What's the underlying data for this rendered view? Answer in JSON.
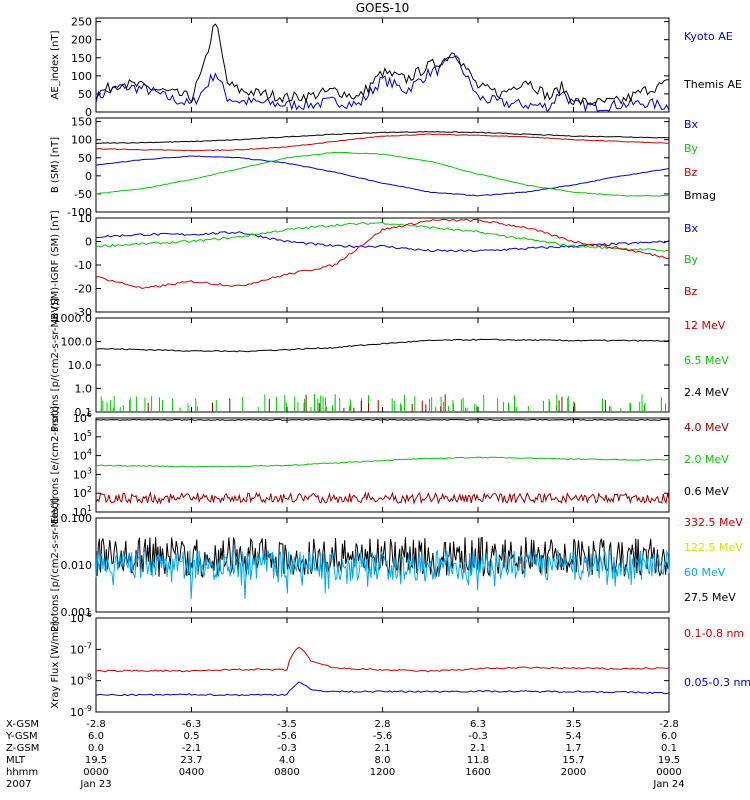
{
  "title": "GOES-10",
  "colors": {
    "black": "#000000",
    "blue": "#0000cc",
    "red": "#cc0000",
    "green": "#00cc00",
    "darkred": "#990000",
    "cyan": "#00aaee",
    "yellow": "#dddd00"
  },
  "chart_data": [
    {
      "type": "line",
      "ylabel": "AE_index [nT]",
      "ylim": [
        0,
        260
      ],
      "yticks": [
        "0",
        "50",
        "100",
        "150",
        "200",
        "250"
      ],
      "series": [
        {
          "name": "Kyoto AE",
          "color": "#0000cc",
          "x": [
            0,
            1,
            2,
            3,
            4,
            4.5,
            5,
            5.5,
            6,
            7,
            8,
            9,
            10,
            11,
            12,
            13,
            14,
            14.5,
            15,
            15.5,
            16,
            17,
            18,
            19,
            19.5,
            20,
            21,
            22,
            23,
            24
          ],
          "values": [
            40,
            70,
            65,
            40,
            20,
            60,
            110,
            40,
            30,
            25,
            20,
            20,
            30,
            20,
            90,
            60,
            110,
            120,
            160,
            100,
            40,
            25,
            20,
            15,
            60,
            20,
            15,
            20,
            25,
            15
          ]
        },
        {
          "name": "Themis AE",
          "color": "#000000",
          "x": [
            0,
            1,
            2,
            3,
            4,
            4.5,
            5,
            5.5,
            6,
            7,
            8,
            9,
            10,
            11,
            12,
            13,
            14,
            14.5,
            15,
            15.5,
            16,
            17,
            18,
            19,
            19.5,
            20,
            21,
            22,
            23,
            24
          ],
          "values": [
            50,
            80,
            70,
            55,
            40,
            120,
            255,
            80,
            60,
            50,
            40,
            45,
            60,
            40,
            110,
            90,
            130,
            140,
            170,
            120,
            70,
            50,
            90,
            40,
            70,
            30,
            25,
            30,
            60,
            80
          ]
        }
      ]
    },
    {
      "type": "line",
      "ylabel": "B (SM) [nT]",
      "ylim": [
        -100,
        160
      ],
      "yticks": [
        "-100",
        "-50",
        "0",
        "50",
        "100",
        "150"
      ],
      "series": [
        {
          "name": "Bx",
          "color": "#0000cc",
          "x": [
            0,
            2,
            4,
            6,
            8,
            10,
            12,
            14,
            16,
            18,
            20,
            22,
            24
          ],
          "values": [
            30,
            45,
            55,
            50,
            35,
            10,
            -20,
            -45,
            -55,
            -45,
            -25,
            0,
            20
          ]
        },
        {
          "name": "By",
          "color": "#00cc00",
          "x": [
            0,
            2,
            4,
            6,
            8,
            10,
            12,
            14,
            16,
            18,
            20,
            22,
            24
          ],
          "values": [
            -50,
            -35,
            -10,
            20,
            50,
            65,
            60,
            40,
            5,
            -25,
            -45,
            -55,
            -55
          ]
        },
        {
          "name": "Bz",
          "color": "#cc0000",
          "x": [
            0,
            2,
            4,
            6,
            8,
            10,
            12,
            14,
            16,
            18,
            20,
            22,
            24
          ],
          "values": [
            75,
            72,
            70,
            72,
            80,
            95,
            110,
            115,
            112,
            108,
            100,
            95,
            90
          ]
        },
        {
          "name": "Bmag",
          "color": "#000000",
          "x": [
            0,
            2,
            4,
            6,
            8,
            10,
            12,
            14,
            16,
            18,
            20,
            22,
            24
          ],
          "values": [
            90,
            92,
            95,
            100,
            108,
            115,
            120,
            122,
            120,
            115,
            110,
            108,
            105
          ]
        }
      ]
    },
    {
      "type": "line",
      "ylabel": "B (SM)-IGRF (SM) [nT]",
      "ylim": [
        -30,
        10
      ],
      "yticks": [
        "-30",
        "-20",
        "-10",
        "0",
        "10"
      ],
      "series": [
        {
          "name": "Bx",
          "color": "#0000cc",
          "x": [
            0,
            2,
            4,
            6,
            8,
            10,
            12,
            14,
            16,
            18,
            20,
            22,
            24
          ],
          "values": [
            2,
            3,
            3,
            4,
            0,
            -2,
            -2,
            -4,
            -4,
            -3,
            -2,
            -1,
            0
          ]
        },
        {
          "name": "By",
          "color": "#00cc00",
          "x": [
            0,
            2,
            4,
            6,
            8,
            10,
            12,
            14,
            16,
            18,
            20,
            22,
            24
          ],
          "values": [
            -2,
            -1,
            0,
            2,
            5,
            7,
            8,
            6,
            4,
            1,
            -2,
            -3,
            -4
          ]
        },
        {
          "name": "Bz",
          "color": "#cc0000",
          "x": [
            0,
            2,
            4,
            6,
            8,
            10,
            12,
            14,
            16,
            18,
            20,
            22,
            24
          ],
          "values": [
            -15,
            -20,
            -17,
            -19,
            -14,
            -10,
            5,
            9,
            9,
            6,
            0,
            -3,
            -7
          ]
        }
      ]
    },
    {
      "type": "line",
      "ylabel": "Protons [p/(cm2-s-sr-MeV)]",
      "yscale": "log",
      "ylim": [
        0.1,
        1000
      ],
      "yticks": [
        "0.1",
        "1.0",
        "10.0",
        "100.0",
        "1000.0"
      ],
      "series": [
        {
          "name": "12 MeV",
          "color": "#cc0000",
          "values": []
        },
        {
          "name": "6.5 MeV",
          "color": "#00cc00",
          "values": []
        },
        {
          "name": "2.4 MeV",
          "color": "#000000",
          "x": [
            0,
            2,
            4,
            6,
            8,
            10,
            12,
            14,
            16,
            18,
            20,
            22,
            24
          ],
          "values": [
            50,
            45,
            40,
            38,
            45,
            55,
            80,
            110,
            120,
            115,
            110,
            110,
            105
          ]
        }
      ]
    },
    {
      "type": "line",
      "ylabel": "Electrons [e/(cm2-s-sr)]",
      "yscale": "log",
      "ylim": [
        10,
        1000000
      ],
      "yticks": [
        "10",
        "10",
        "10",
        "10",
        "10",
        "10"
      ],
      "ytick_exponents": [
        "1",
        "2",
        "3",
        "4",
        "5",
        "6"
      ],
      "series": [
        {
          "name": "4.0 MeV",
          "color": "#990000",
          "values": []
        },
        {
          "name": "2.0 MeV",
          "color": "#00cc00",
          "x": [
            0,
            2,
            4,
            6,
            8,
            10,
            12,
            14,
            16,
            18,
            20,
            22,
            24
          ],
          "values": [
            3000,
            2800,
            2600,
            2700,
            3000,
            4000,
            5500,
            7000,
            8000,
            7500,
            6500,
            6000,
            6000
          ]
        },
        {
          "name": "0.6 MeV",
          "color": "#000000",
          "x": [
            0,
            24
          ],
          "values": [
            800000,
            800000
          ]
        }
      ]
    },
    {
      "type": "line",
      "ylabel": "Protons [p/(cm2-s-sr-MeV)]",
      "yscale": "log",
      "ylim": [
        0.001,
        0.1
      ],
      "yticks": [
        "0.001",
        "0.010",
        "0.100"
      ],
      "series": [
        {
          "name": "332.5 MeV",
          "color": "#cc0000",
          "values": []
        },
        {
          "name": "122.5 MeV",
          "color": "#dddd00",
          "values": []
        },
        {
          "name": "60 MeV",
          "color": "#00aaee",
          "values": []
        },
        {
          "name": "27.5 MeV",
          "color": "#000000",
          "values": []
        }
      ]
    },
    {
      "type": "line",
      "ylabel": "Xray Flux [W/m2]",
      "yscale": "log",
      "ylim": [
        1e-09,
        1e-06
      ],
      "yticks": [
        "10",
        "10",
        "10",
        "10"
      ],
      "ytick_exponents": [
        "-9",
        "-8",
        "-7",
        "-6"
      ],
      "series": [
        {
          "name": "0.1-0.8 nm",
          "color": "#cc0000",
          "x": [
            0,
            2,
            4,
            6,
            8,
            8.5,
            9,
            10,
            12,
            14,
            16,
            18,
            20,
            22,
            24
          ],
          "values": [
            2e-08,
            2.1e-08,
            2e-08,
            2.3e-08,
            2.2e-08,
            1.2e-07,
            4e-08,
            2.5e-08,
            2.2e-08,
            2e-08,
            2.4e-08,
            2.6e-08,
            2.5e-08,
            2.4e-08,
            2.5e-08
          ]
        },
        {
          "name": "0.05-0.3 nm",
          "color": "#0000cc",
          "x": [
            0,
            2,
            4,
            6,
            8,
            8.5,
            9,
            10,
            12,
            14,
            16,
            18,
            20,
            22,
            24
          ],
          "values": [
            3.5e-09,
            3.5e-09,
            3.6e-09,
            3.5e-09,
            3.6e-09,
            9e-09,
            5e-09,
            4.5e-09,
            4.5e-09,
            4.5e-09,
            4.6e-09,
            4.5e-09,
            4.5e-09,
            4.3e-09,
            4e-09
          ]
        }
      ]
    }
  ],
  "x_axis": {
    "row_labels": [
      "X-GSM",
      "Y-GSM",
      "Z-GSM",
      "MLT",
      "hhmm",
      "2007"
    ],
    "columns": [
      [
        "-2.8",
        "6.0",
        "0.0",
        "19.5",
        "0000",
        "Jan 23"
      ],
      [
        "-6.3",
        "0.5",
        "-2.1",
        "23.7",
        "0400",
        ""
      ],
      [
        "-3.5",
        "-5.6",
        "-0.3",
        "4.0",
        "0800",
        ""
      ],
      [
        "2.8",
        "-5.6",
        "2.1",
        "8.0",
        "1200",
        ""
      ],
      [
        "6.3",
        "-0.3",
        "2.1",
        "11.8",
        "1600",
        ""
      ],
      [
        "3.5",
        "5.4",
        "1.7",
        "15.7",
        "2000",
        ""
      ],
      [
        "-2.8",
        "6.0",
        "0.1",
        "19.5",
        "0000",
        "Jan 24"
      ]
    ]
  }
}
